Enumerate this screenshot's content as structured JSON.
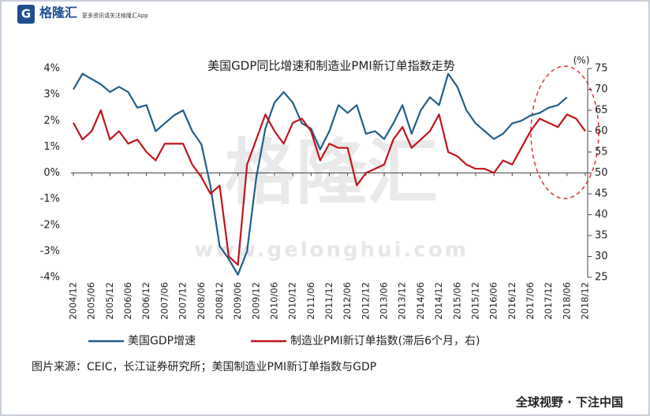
{
  "header": {
    "logo": "格隆汇",
    "slogan": "更多资讯请关注格隆汇App"
  },
  "watermark": {
    "name": "格隆汇",
    "url": "www.gelonghui.com"
  },
  "chart_data": {
    "type": "line",
    "title": "美国GDP同比增速和制造业PMI新订单指数走势",
    "y2_unit": "(%)",
    "categories": [
      "2004/12",
      null,
      "2005/06",
      null,
      "2005/12",
      null,
      "2006/06",
      null,
      "2006/12",
      null,
      "2007/06",
      null,
      "2007/12",
      null,
      "2008/06",
      null,
      "2008/12",
      null,
      "2009/06",
      null,
      "2009/12",
      null,
      "2010/06",
      null,
      "2010/12",
      null,
      "2011/06",
      null,
      "2011/12",
      null,
      "2012/06",
      null,
      "2012/12",
      null,
      "2013/06",
      null,
      "2013/12",
      null,
      "2014/06",
      null,
      "2014/12",
      null,
      "2015/06",
      null,
      "2015/12",
      null,
      "2016/06",
      null,
      "2016/12",
      null,
      "2017/06",
      null,
      "2017/12",
      null,
      "2018/06",
      null,
      "2018/12"
    ],
    "series": [
      {
        "name": "美国GDP增速",
        "color": "#1f5f8b",
        "axis": "y",
        "values": [
          3.2,
          3.8,
          3.6,
          3.4,
          3.1,
          3.3,
          3.1,
          2.5,
          2.6,
          1.6,
          1.9,
          2.2,
          2.4,
          1.6,
          1.1,
          -0.5,
          -2.8,
          -3.3,
          -3.9,
          -3.0,
          -0.2,
          1.7,
          2.7,
          3.1,
          2.7,
          1.9,
          1.7,
          0.9,
          1.6,
          2.6,
          2.3,
          2.6,
          1.5,
          1.6,
          1.3,
          1.9,
          2.6,
          1.5,
          2.4,
          2.9,
          2.6,
          3.8,
          3.3,
          2.4,
          1.9,
          1.6,
          1.3,
          1.5,
          1.9,
          2.0,
          2.2,
          2.3,
          2.5,
          2.6,
          2.9,
          null,
          null
        ]
      },
      {
        "name": "制造业PMI新订单指数(滞后6个月，右)",
        "color": "#c0141c",
        "axis": "y2",
        "values": [
          62,
          58,
          60,
          65,
          58,
          60,
          57,
          58,
          55,
          53,
          57,
          57,
          57,
          52,
          49,
          45,
          47,
          30,
          28,
          52,
          58,
          64,
          60,
          57,
          62,
          63,
          60,
          53,
          57,
          56,
          56,
          47,
          50,
          51,
          52,
          58,
          61,
          56,
          58,
          60,
          64,
          55,
          54,
          52,
          51,
          51,
          50,
          53,
          52,
          56,
          60,
          63,
          62,
          61,
          64,
          63,
          60
        ]
      }
    ],
    "ylim": [
      -4,
      4
    ],
    "yticks": [
      {
        "value": 4,
        "label": "4%"
      },
      {
        "value": 3,
        "label": "3%"
      },
      {
        "value": 2,
        "label": "2%"
      },
      {
        "value": 1,
        "label": "1%"
      },
      {
        "value": 0,
        "label": "0%"
      },
      {
        "value": -1,
        "label": "-1%"
      },
      {
        "value": -2,
        "label": "-2%"
      },
      {
        "value": -3,
        "label": "-3%"
      },
      {
        "value": -4,
        "label": "-4%"
      }
    ],
    "y2lim": [
      25,
      75
    ],
    "y2ticks": [
      75,
      70,
      65,
      60,
      55,
      50,
      45,
      40,
      35,
      30,
      25
    ]
  },
  "source": "图片来源：CEIC，长江证券研究所；美国制造业PMI新订单指数与GDP",
  "footer": "全球视野 · 下注中国"
}
